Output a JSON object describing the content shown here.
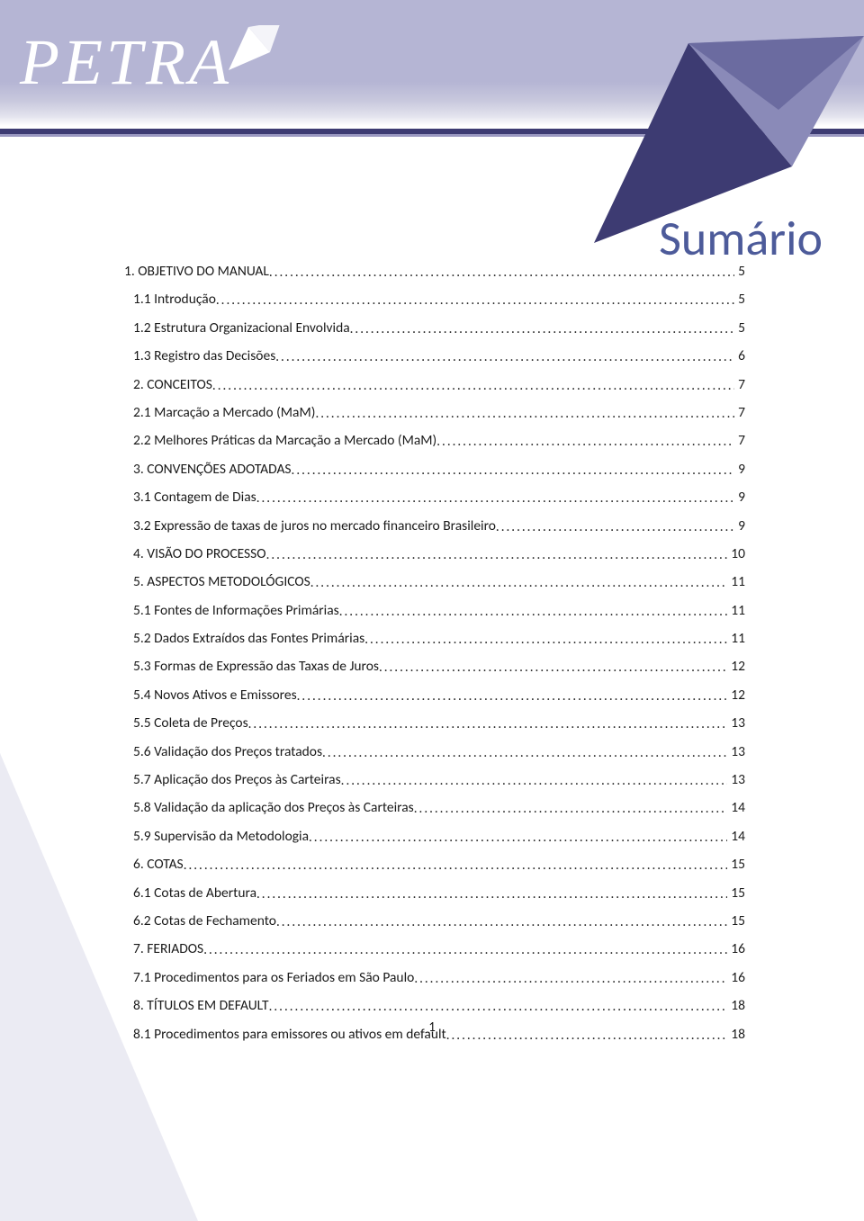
{
  "brand": {
    "logo_text": "PETRA"
  },
  "title": "Sumário",
  "page_number": "1",
  "colors": {
    "header_band_top": "#b5b5d4",
    "header_underline": "#3d3b72",
    "title_color": "#4d5b9a",
    "arrow_fill": "#3d3b72",
    "arrow_light": "#8a8ab8",
    "bg": "#ffffff",
    "bl_triangle": "#e9e9f2",
    "text": "#1a1a1a"
  },
  "toc": [
    {
      "indent": 0,
      "label": "1. OBJETIVO DO MANUAL",
      "page": "5"
    },
    {
      "indent": 1,
      "label": "1.1   Introdução",
      "page": "5"
    },
    {
      "indent": 1,
      "label": "1.2 Estrutura Organizacional Envolvida",
      "page": "5"
    },
    {
      "indent": 1,
      "label": "1.3 Registro das Decisões",
      "page": "6"
    },
    {
      "indent": 1,
      "label": "2. CONCEITOS",
      "page": "7"
    },
    {
      "indent": 1,
      "label": "2.1 Marcação a Mercado (MaM)",
      "page": "7"
    },
    {
      "indent": 1,
      "label": "2.2 Melhores Práticas da Marcação a Mercado (MaM)",
      "page": "7"
    },
    {
      "indent": 1,
      "label": "3. CONVENÇÕES ADOTADAS",
      "page": "9"
    },
    {
      "indent": 1,
      "label": "3.1 Contagem de Dias",
      "page": "9"
    },
    {
      "indent": 1,
      "label": "3.2 Expressão de taxas de juros no mercado financeiro Brasileiro",
      "page": "9"
    },
    {
      "indent": 1,
      "label": "4. VISÃO DO PROCESSO",
      "page": "10"
    },
    {
      "indent": 1,
      "label": "5. ASPECTOS METODOLÓGICOS",
      "page": "11"
    },
    {
      "indent": 1,
      "label": "5.1 Fontes de Informações Primárias",
      "page": "11"
    },
    {
      "indent": 1,
      "label": "5.2 Dados Extraídos das Fontes Primárias",
      "page": "11"
    },
    {
      "indent": 1,
      "label": "5.3 Formas de Expressão das Taxas de Juros",
      "page": "12"
    },
    {
      "indent": 1,
      "label": "5.4 Novos Ativos e Emissores",
      "page": "12"
    },
    {
      "indent": 1,
      "label": "5.5 Coleta de Preços",
      "page": "13"
    },
    {
      "indent": 1,
      "label": "5.6 Validação dos Preços tratados",
      "page": "13"
    },
    {
      "indent": 1,
      "label": "5.7 Aplicação dos Preços às Carteiras",
      "page": "13"
    },
    {
      "indent": 1,
      "label": "5.8 Validação da aplicação dos Preços às Carteiras",
      "page": "14"
    },
    {
      "indent": 1,
      "label": "5.9 Supervisão da Metodologia",
      "page": "14"
    },
    {
      "indent": 1,
      "label": "6. COTAS",
      "page": "15"
    },
    {
      "indent": 1,
      "label": "6.1 Cotas de Abertura",
      "page": "15"
    },
    {
      "indent": 1,
      "label": "6.2 Cotas de Fechamento",
      "page": "15"
    },
    {
      "indent": 1,
      "label": "7. FERIADOS",
      "page": "16"
    },
    {
      "indent": 1,
      "label": "7.1 Procedimentos para os Feriados em São Paulo",
      "page": "16"
    },
    {
      "indent": 1,
      "label": "8. TÍTULOS EM DEFAULT",
      "page": "18"
    },
    {
      "indent": 1,
      "label": "8.1 Procedimentos para emissores ou ativos em default",
      "page": "18"
    }
  ]
}
